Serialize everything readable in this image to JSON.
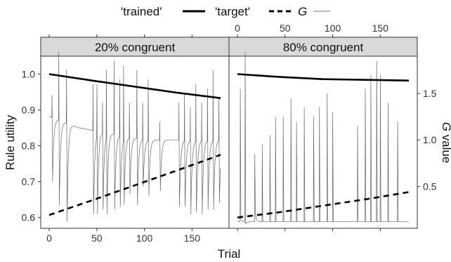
{
  "chart_data": {
    "type": "line",
    "legend": {
      "position": "top",
      "entries": [
        {
          "label": "'trained'",
          "style": "solid-thick"
        },
        {
          "label": "'target'",
          "style": "dashed-thick"
        },
        {
          "label": "G",
          "style": "solid-thin-gray"
        }
      ]
    },
    "xlabel": "Trial",
    "ylabel_left": "Rule utility",
    "ylabel_right": "G value",
    "x_range": [
      0,
      180
    ],
    "y_left_range": [
      0.57,
      1.05
    ],
    "y_right_range": [
      0.05,
      1.9
    ],
    "x_ticks": [
      "0",
      "50",
      "100",
      "150"
    ],
    "y_left_ticks": [
      "0.6",
      "0.7",
      "0.8",
      "0.9",
      "1.0"
    ],
    "y_right_ticks": [
      "0.5",
      "1.0",
      "1.5"
    ],
    "grid": false,
    "panels": [
      {
        "title": "20% congruent",
        "series": [
          {
            "name": "'trained'",
            "axis": "left",
            "x": [
              0,
              45,
              90,
              135,
              180
            ],
            "y": [
              1.0,
              0.982,
              0.965,
              0.948,
              0.933
            ]
          },
          {
            "name": "'target'",
            "axis": "left",
            "x": [
              0,
              45,
              90,
              135,
              180
            ],
            "y": [
              0.607,
              0.648,
              0.69,
              0.732,
              0.775
            ]
          }
        ],
        "g_spike_trials": [
          3,
          10,
          18,
          46,
          50,
          56,
          60,
          68,
          74,
          78,
          84,
          92,
          98,
          104,
          116,
          136,
          142,
          148,
          154,
          160,
          166,
          172,
          178
        ],
        "g_spike_peaks": [
          1.48,
          1.95,
          1.75,
          1.6,
          1.6,
          1.4,
          1.75,
          1.85,
          1.65,
          1.8,
          1.4,
          1.75,
          1.4,
          1.65,
          1.2,
          1.4,
          1.5,
          1.35,
          1.6,
          1.4,
          1.55,
          1.75,
          1.45
        ],
        "g_spike_troughs": [
          0.55,
          0.3,
          0.12,
          0.2,
          0.2,
          0.25,
          0.2,
          0.25,
          0.28,
          0.3,
          0.42,
          0.3,
          0.5,
          0.4,
          0.45,
          0.28,
          0.28,
          0.2,
          0.22,
          0.2,
          0.25,
          0.25,
          0.32
        ],
        "g_baseline": [
          [
            0,
            1.25
          ],
          [
            30,
            1.13
          ],
          [
            100,
            1.0
          ],
          [
            180,
            1.0
          ]
        ]
      },
      {
        "title": "80% congruent",
        "series": [
          {
            "name": "'trained'",
            "axis": "left",
            "x": [
              0,
              45,
              90,
              135,
              180
            ],
            "y": [
              1.0,
              0.992,
              0.986,
              0.984,
              0.982
            ]
          },
          {
            "name": "'target'",
            "axis": "left",
            "x": [
              0,
              45,
              90,
              135,
              180
            ],
            "y": [
              0.6,
              0.615,
              0.633,
              0.651,
              0.671
            ]
          }
        ],
        "g_spike_trials": [
          3,
          8,
          18,
          26,
          34,
          40,
          48,
          56,
          62,
          70,
          80,
          86,
          94,
          100,
          126,
          134,
          140,
          146,
          150,
          158,
          168
        ],
        "g_spike_peaks": [
          1.55,
          1.95,
          0.85,
          0.95,
          1.05,
          1.25,
          1.25,
          1.45,
          1.2,
          1.35,
          1.25,
          1.35,
          1.5,
          1.3,
          1.15,
          1.55,
          1.7,
          1.85,
          1.7,
          1.4,
          1.2
        ],
        "g_spike_troughs": [
          0.15,
          0.1,
          0.2,
          0.12,
          0.12,
          0.12,
          0.12,
          0.12,
          0.12,
          0.12,
          0.12,
          0.12,
          0.12,
          0.12,
          0.12,
          0.12,
          0.12,
          0.12,
          0.12,
          0.12,
          0.12
        ],
        "g_baseline": [
          [
            0,
            0.12
          ],
          [
            180,
            0.12
          ]
        ]
      }
    ]
  }
}
